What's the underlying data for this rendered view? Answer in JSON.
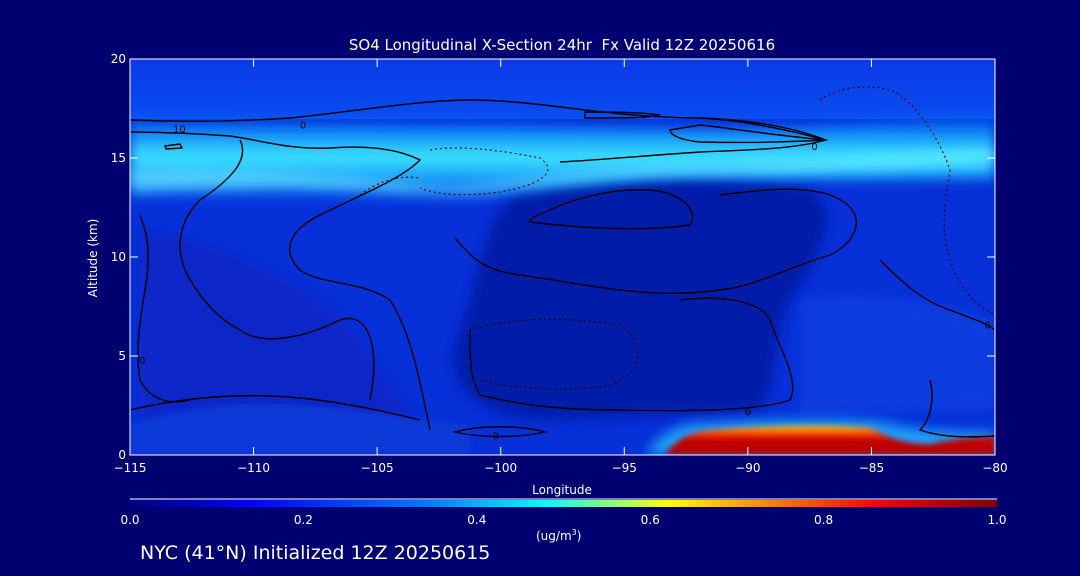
{
  "chart_data": {
    "type": "heatmap",
    "title": "SO4 Longitudinal X-Section 24hr  Fx Valid 12Z 20250616",
    "xlabel": "Longitude",
    "ylabel": "Altitude (km)",
    "xlim": [
      -115,
      -80
    ],
    "ylim": [
      0,
      20
    ],
    "x_ticks": [
      -115,
      -110,
      -105,
      -100,
      -95,
      -90,
      -85,
      -80
    ],
    "y_ticks": [
      0,
      5,
      10,
      15,
      20
    ],
    "colorbar": {
      "label": "(ug/m",
      "label_sup": "3",
      "label_tail": ")",
      "range": [
        0.0,
        1.0
      ],
      "ticks": [
        "0.0",
        "0.2",
        "0.4",
        "0.6",
        "0.8",
        "1.0"
      ],
      "colors": [
        "#000080",
        "#0000ff",
        "#0080ff",
        "#00ffff",
        "#ffff00",
        "#ff8000",
        "#ff0000",
        "#800000"
      ]
    },
    "contour_labels": [
      {
        "text": "10",
        "lon": -113.0,
        "alt": 16.5
      },
      {
        "text": "0",
        "lon": -108.0,
        "alt": 16.7
      },
      {
        "text": "0",
        "lon": -87.3,
        "alt": 15.6
      },
      {
        "text": "0",
        "lon": -100.2,
        "alt": 1.0
      },
      {
        "text": "0",
        "lon": -90.0,
        "alt": 2.2
      },
      {
        "text": "0",
        "lon": -80.3,
        "alt": 6.6
      },
      {
        "text": "0",
        "lon": -114.5,
        "alt": 4.8
      }
    ],
    "features": [
      {
        "name": "upper SO4 layer (approx. 0.3-0.45 ug/m3)",
        "lon_range": [
          -115,
          -80
        ],
        "alt_range": [
          12.5,
          17
        ]
      },
      {
        "name": "near-surface SO4 maximum (approx. 0.9-1.0 ug/m3)",
        "lon_range": [
          -93,
          -80
        ],
        "alt_range": [
          0,
          1.6
        ]
      }
    ]
  },
  "footer": "NYC (41°N) Initialized 12Z 20250615"
}
